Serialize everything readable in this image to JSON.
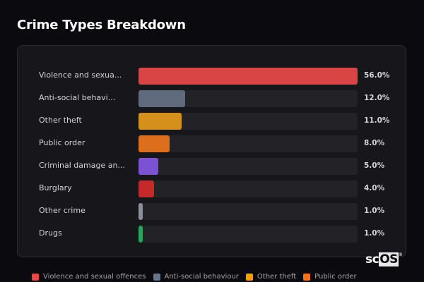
{
  "title": "Crime Types Breakdown",
  "chart_data": {
    "type": "bar",
    "orientation": "horizontal",
    "title": "Crime Types Breakdown",
    "categories": [
      "Violence and sexual offences",
      "Anti-social behaviour",
      "Other theft",
      "Public order",
      "Criminal damage and arson",
      "Burglary",
      "Other crime",
      "Drugs"
    ],
    "display_labels": [
      "Violence and sexua...",
      "Anti-social behavi...",
      "Other theft",
      "Public order",
      "Criminal damage an...",
      "Burglary",
      "Other crime",
      "Drugs"
    ],
    "values": [
      56.0,
      12.0,
      11.0,
      8.0,
      5.0,
      4.0,
      1.0,
      1.0
    ],
    "value_labels": [
      "56.0%",
      "12.0%",
      "11.0%",
      "8.0%",
      "5.0%",
      "4.0%",
      "1.0%",
      "1.0%"
    ],
    "colors": [
      "#d94545",
      "#5f6b7d",
      "#d4901a",
      "#dd6e1e",
      "#7b52d4",
      "#c42a2a",
      "#8b8f99",
      "#22a858"
    ],
    "unit": "%",
    "xlim": [
      0,
      56
    ],
    "grid": false,
    "legend_position": "bottom"
  },
  "legend": [
    {
      "label": "Violence and sexual offences",
      "color": "#ef4444"
    },
    {
      "label": "Anti-social behaviour",
      "color": "#64748b"
    },
    {
      "label": "Other theft",
      "color": "#f59e0b"
    },
    {
      "label": "Public order",
      "color": "#f97316"
    }
  ],
  "watermark": {
    "prefix": "sc",
    "highlight": "OS",
    "mark": "®"
  }
}
